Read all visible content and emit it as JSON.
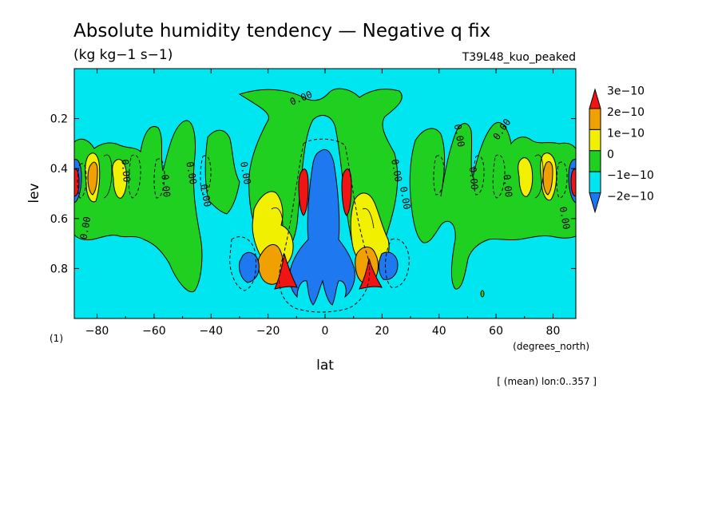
{
  "chart_data": {
    "type": "contour",
    "title": "Absolute humidity tendency — Negative q fix",
    "units": "(kg kg−1 s−1)",
    "experiment": "T39L48_kuo_peaked",
    "xlabel": "lat",
    "xunits": "(degrees_north)",
    "ylabel": "lev",
    "yunits": "(1)",
    "footnote": "[ (mean) lon:0..357 ]",
    "xlim": [
      -88,
      88
    ],
    "ylim": [
      0.0,
      1.0
    ],
    "yreversed": true,
    "xticks": [
      -80,
      -60,
      -40,
      -20,
      0,
      20,
      40,
      60,
      80
    ],
    "xtick_labels": [
      "−80",
      "−60",
      "−40",
      "−20",
      "0",
      "20",
      "40",
      "60",
      "80"
    ],
    "yticks": [
      0.2,
      0.4,
      0.6,
      0.8
    ],
    "ytick_labels": [
      "0.2",
      "0.4",
      "0.6",
      "0.8"
    ],
    "levels": [
      -2e-10,
      -1e-10,
      0,
      1e-10,
      2e-10,
      3e-10
    ],
    "colorbar": {
      "colors": [
        "#1e78f0",
        "#00e6f0",
        "#20d020",
        "#f0f000",
        "#f0a000",
        "#f01414"
      ],
      "labels": [
        "−2e−10",
        "−1e−10",
        "0",
        "1e−10",
        "2e−10",
        "3e−10"
      ]
    },
    "contour_labels": [
      {
        "text": "0.00",
        "lat": -8,
        "lev": 0.13,
        "angle": -22
      },
      {
        "text": "0.00",
        "lat": -48,
        "lev": 0.42,
        "angle": 80
      },
      {
        "text": "0.00",
        "lat": -71,
        "lev": 0.41,
        "angle": 85
      },
      {
        "text": "0.00",
        "lat": -83,
        "lev": 0.64,
        "angle": -80
      },
      {
        "text": "0.00",
        "lat": -29,
        "lev": 0.42,
        "angle": 80
      },
      {
        "text": "0.00",
        "lat": -43,
        "lev": 0.51,
        "angle": 80
      },
      {
        "text": "0.00",
        "lat": 24,
        "lev": 0.41,
        "angle": 80
      },
      {
        "text": "0.00",
        "lat": 27,
        "lev": 0.52,
        "angle": 80
      },
      {
        "text": "0.00",
        "lat": 46,
        "lev": 0.27,
        "angle": 80
      },
      {
        "text": "0.00",
        "lat": 51,
        "lev": 0.44,
        "angle": 85
      },
      {
        "text": "0.00",
        "lat": 63,
        "lev": 0.25,
        "angle": -55
      },
      {
        "text": "0.00",
        "lat": 63,
        "lev": 0.47,
        "angle": 85
      },
      {
        "text": "0.00",
        "lat": 83,
        "lev": 0.6,
        "angle": 80
      },
      {
        "text": "0.00",
        "lat": -57,
        "lev": 0.47,
        "angle": 85
      }
    ],
    "features": [
      {
        "type": "tendency_min",
        "lat": 0,
        "lev": 0.65,
        "level": -2e-10,
        "description": "equatorial drying column"
      },
      {
        "type": "tendency_max",
        "lat": -13,
        "lev": 0.85,
        "level": 3e-10
      },
      {
        "type": "tendency_max",
        "lat": 14,
        "lev": 0.85,
        "level": 3e-10
      },
      {
        "type": "tendency_max",
        "lat": -7,
        "lev": 0.48,
        "level": 3e-10
      },
      {
        "type": "tendency_max",
        "lat": 8,
        "lev": 0.48,
        "level": 3e-10
      },
      {
        "type": "tendency_max",
        "lat": -86,
        "lev": 0.45,
        "level": 3e-10
      },
      {
        "type": "tendency_max",
        "lat": 86,
        "lev": 0.45,
        "level": 3e-10
      }
    ]
  }
}
